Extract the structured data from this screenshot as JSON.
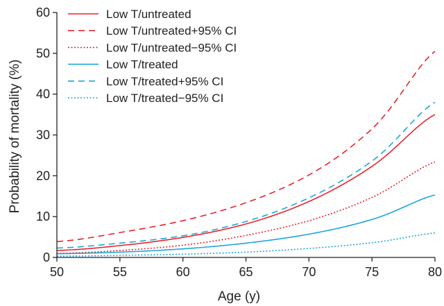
{
  "chart_data": {
    "type": "line",
    "xlabel": "Age (y)",
    "ylabel": "Probability of mortality (%)",
    "xlim": [
      50,
      80
    ],
    "ylim": [
      0,
      60
    ],
    "x_ticks": [
      50,
      55,
      60,
      65,
      70,
      75,
      80
    ],
    "y_ticks": [
      0,
      10,
      20,
      30,
      40,
      50,
      60
    ],
    "grid": false,
    "legend_position": "top-left",
    "x": [
      50,
      55,
      60,
      65,
      70,
      75,
      80
    ],
    "series": [
      {
        "name": "Low T/untreated",
        "color": "#e8232a",
        "dash": "solid",
        "values": [
          1.7,
          2.9,
          4.9,
          8.2,
          13.7,
          22.3,
          35.0
        ]
      },
      {
        "name": "Low T/untreated+95% CI",
        "color": "#e8232a",
        "dash": "dashed",
        "values": [
          3.9,
          6.1,
          9.0,
          13.4,
          20.2,
          31.5,
          50.5
        ]
      },
      {
        "name": "Low T/untreated−95% CI",
        "color": "#e8232a",
        "dash": "dotted",
        "values": [
          1.0,
          1.7,
          3.0,
          5.4,
          9.0,
          14.7,
          23.4
        ]
      },
      {
        "name": "Low T/treated",
        "color": "#1aa7d9",
        "dash": "solid",
        "values": [
          0.9,
          1.3,
          2.1,
          3.5,
          5.7,
          9.3,
          15.3
        ]
      },
      {
        "name": "Low T/treated+95% CI",
        "color": "#1aa7d9",
        "dash": "dashed",
        "values": [
          2.3,
          3.5,
          5.3,
          8.8,
          14.6,
          23.6,
          38.0
        ]
      },
      {
        "name": "Low T/treated−95% CI",
        "color": "#1aa7d9",
        "dash": "dotted",
        "values": [
          0.3,
          0.5,
          0.8,
          1.3,
          2.2,
          3.6,
          6.0
        ]
      }
    ]
  }
}
